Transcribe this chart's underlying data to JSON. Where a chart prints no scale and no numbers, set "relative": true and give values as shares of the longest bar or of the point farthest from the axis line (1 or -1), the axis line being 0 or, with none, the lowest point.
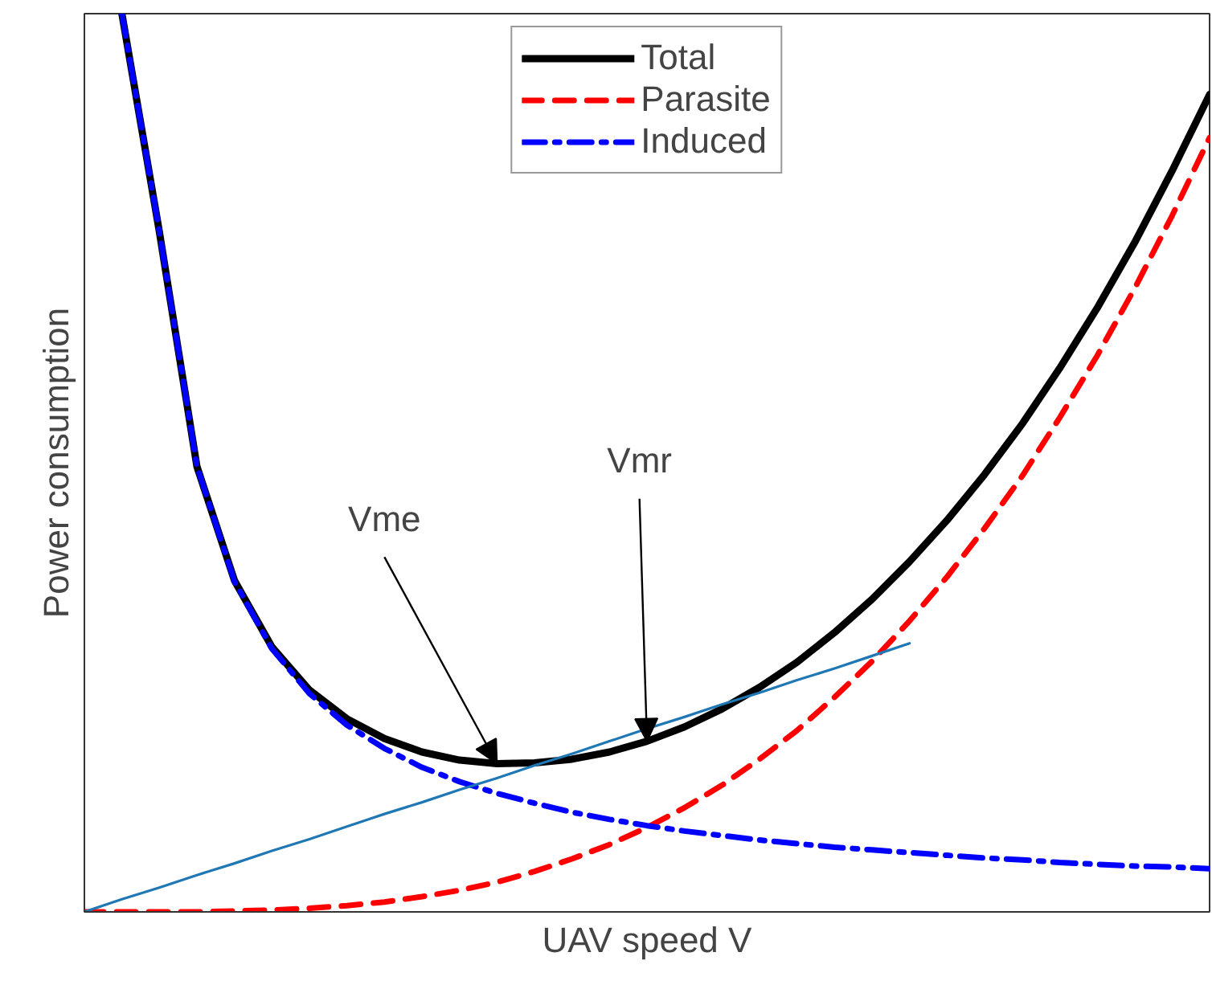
{
  "chart_data": {
    "type": "line",
    "relative": true,
    "xlabel": "UAV speed V",
    "ylabel": "Power consumption",
    "legend": "top",
    "categories": [
      null,
      null,
      null,
      null,
      null,
      null,
      null,
      null,
      null,
      null,
      null,
      null,
      null,
      null,
      null,
      null,
      null,
      null,
      null,
      null,
      null,
      null,
      null,
      null,
      null,
      null,
      null,
      null,
      null,
      null,
      null
    ],
    "series": [
      {
        "name": "Total",
        "color": "#000000",
        "line_style": "solid",
        "values": [
          null,
          1.0,
          0.757,
          0.496,
          0.369,
          0.295,
          0.247,
          0.215,
          0.193,
          0.178,
          0.169,
          0.165,
          0.166,
          0.17,
          0.178,
          0.19,
          0.206,
          0.226,
          0.25,
          0.278,
          0.311,
          0.348,
          0.39,
          0.436,
          0.487,
          0.543,
          0.605,
          0.672,
          0.745,
          0.825,
          0.91
        ]
      },
      {
        "name": "Parasite",
        "color": "#ff0000",
        "line_style": "dashed",
        "values": [
          0,
          0,
          0.0,
          0.0,
          0.001,
          0.002,
          0.004,
          0.007,
          0.011,
          0.017,
          0.024,
          0.033,
          0.045,
          0.059,
          0.075,
          0.094,
          0.116,
          0.141,
          0.17,
          0.202,
          0.239,
          0.279,
          0.324,
          0.373,
          0.427,
          0.485,
          0.55,
          0.619,
          0.694,
          0.775,
          0.862
        ]
      },
      {
        "name": "Induced",
        "color": "#0000ff",
        "line_style": "dashdot",
        "values": [
          null,
          1.0,
          0.757,
          0.496,
          0.368,
          0.293,
          0.243,
          0.208,
          0.182,
          0.161,
          0.145,
          0.132,
          0.121,
          0.111,
          0.103,
          0.096,
          0.09,
          0.085,
          0.08,
          0.076,
          0.072,
          0.069,
          0.066,
          0.063,
          0.06,
          0.058,
          0.055,
          0.053,
          0.051,
          0.05,
          0.048
        ]
      },
      {
        "color": "#1f77b4",
        "line_style": "solid",
        "values": [
          0,
          0.014,
          0.027,
          0.041,
          0.054,
          0.068,
          0.081,
          0.095,
          0.109,
          0.122,
          0.136,
          0.149,
          0.163,
          0.176,
          0.19,
          0.204,
          0.217,
          0.231,
          0.244,
          0.258,
          0.271,
          0.285,
          0.299,
          null,
          null,
          null,
          null,
          null,
          null,
          null,
          null
        ]
      }
    ],
    "annotations": [
      "Vme",
      "Vmr"
    ]
  }
}
